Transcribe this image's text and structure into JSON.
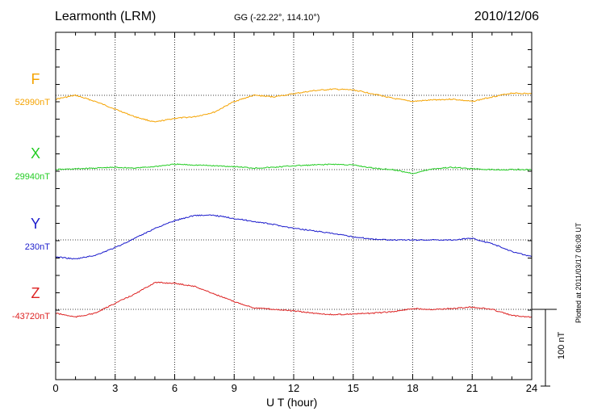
{
  "header": {
    "station": "Learmonth (LRM)",
    "coords": "GG (-22.22°, 114.10°)",
    "date": "2010/12/06"
  },
  "footer": {
    "plotted": "Plotted at 2011/03/17 06:08 UT"
  },
  "scale": {
    "label": "100 nT",
    "value_nT": 100
  },
  "chart_data": {
    "type": "line",
    "title": "Learmonth (LRM)",
    "xlabel": "U T (hour)",
    "xlim": [
      0,
      24
    ],
    "xticks": [
      0,
      3,
      6,
      9,
      12,
      15,
      18,
      21,
      24
    ],
    "grid": true,
    "series": [
      {
        "name": "F",
        "baseline_label": "52990nT",
        "baseline_nT": 52990,
        "color": "#f5a300",
        "x": [
          0,
          1,
          2,
          3,
          4,
          5,
          6,
          7,
          8,
          9,
          10,
          11,
          12,
          13,
          14,
          15,
          16,
          17,
          18,
          19,
          20,
          21,
          22,
          23,
          24
        ],
        "deviation_nT": [
          -5,
          0,
          -8,
          -18,
          -28,
          -35,
          -30,
          -28,
          -22,
          -8,
          0,
          -2,
          2,
          6,
          8,
          7,
          2,
          -4,
          -8,
          -6,
          -5,
          -8,
          -2,
          3,
          2
        ]
      },
      {
        "name": "X",
        "baseline_label": "29940nT",
        "baseline_nT": 29940,
        "color": "#22cc22",
        "x": [
          0,
          1,
          2,
          3,
          4,
          5,
          6,
          7,
          8,
          9,
          10,
          11,
          12,
          13,
          14,
          15,
          16,
          17,
          18,
          19,
          20,
          21,
          22,
          23,
          24
        ],
        "deviation_nT": [
          0,
          1,
          2,
          3,
          2,
          4,
          7,
          6,
          5,
          4,
          2,
          3,
          5,
          6,
          7,
          6,
          2,
          0,
          -5,
          1,
          3,
          1,
          0,
          0,
          0
        ]
      },
      {
        "name": "Y",
        "baseline_label": "230nT",
        "baseline_nT": 230,
        "color": "#1a1acc",
        "x": [
          0,
          1,
          2,
          3,
          4,
          5,
          6,
          7,
          8,
          9,
          10,
          11,
          12,
          13,
          14,
          15,
          16,
          17,
          18,
          19,
          20,
          21,
          22,
          23,
          24
        ],
        "deviation_nT": [
          -22,
          -25,
          -20,
          -10,
          2,
          15,
          25,
          32,
          32,
          28,
          24,
          20,
          15,
          12,
          8,
          4,
          1,
          0,
          0,
          0,
          0,
          2,
          -5,
          -15,
          -22
        ]
      },
      {
        "name": "Z",
        "baseline_label": "-43720nT",
        "baseline_nT": -43720,
        "color": "#dd2222",
        "x": [
          0,
          1,
          2,
          3,
          4,
          5,
          6,
          7,
          8,
          9,
          10,
          11,
          12,
          13,
          14,
          15,
          16,
          17,
          18,
          19,
          20,
          21,
          22,
          23,
          24
        ],
        "deviation_nT": [
          -5,
          -10,
          -5,
          8,
          20,
          35,
          34,
          30,
          20,
          10,
          2,
          0,
          -2,
          -5,
          -7,
          -6,
          -5,
          -3,
          1,
          0,
          1,
          3,
          0,
          -8,
          -10
        ]
      }
    ]
  }
}
